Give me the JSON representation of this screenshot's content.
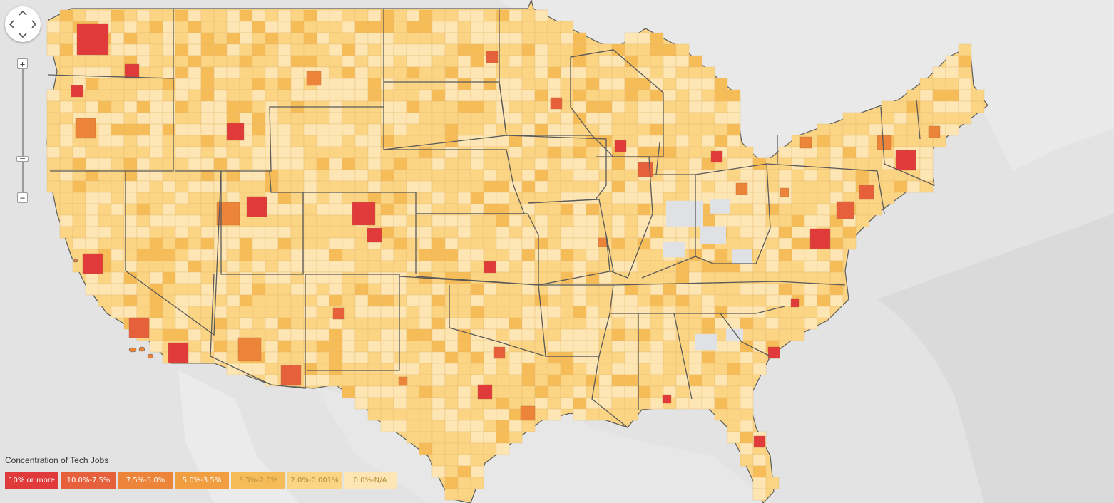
{
  "legend": {
    "title": "Concentration of Tech Jobs",
    "bins": [
      {
        "label": "10% or more",
        "color": "#e13a3a"
      },
      {
        "label": "10.0%-7.5%",
        "color": "#e6603c"
      },
      {
        "label": "7.5%-5.0%",
        "color": "#ec843a"
      },
      {
        "label": "5.0%-3.5%",
        "color": "#f09e40"
      },
      {
        "label": "3.5%-2.0%",
        "color": "#f6bc58"
      },
      {
        "label": "2.0%-0.001%",
        "color": "#fbd584"
      },
      {
        "label": "0.0%-N/A",
        "color": "#fde6b3"
      }
    ]
  },
  "controls": {
    "zoom_in_symbol": "+",
    "zoom_out_symbol": "−",
    "pan_up_icon": "chevron-up-icon",
    "pan_down_icon": "chevron-down-icon",
    "pan_left_icon": "chevron-left-icon",
    "pan_right_icon": "chevron-right-icon"
  },
  "map": {
    "type": "choropleth",
    "unit": "counties",
    "basemap_colors": {
      "background": "#e4e4e4",
      "land": "#e9e9e9",
      "water": "#d9d9d9",
      "state_border": "#5e5e5e"
    }
  }
}
